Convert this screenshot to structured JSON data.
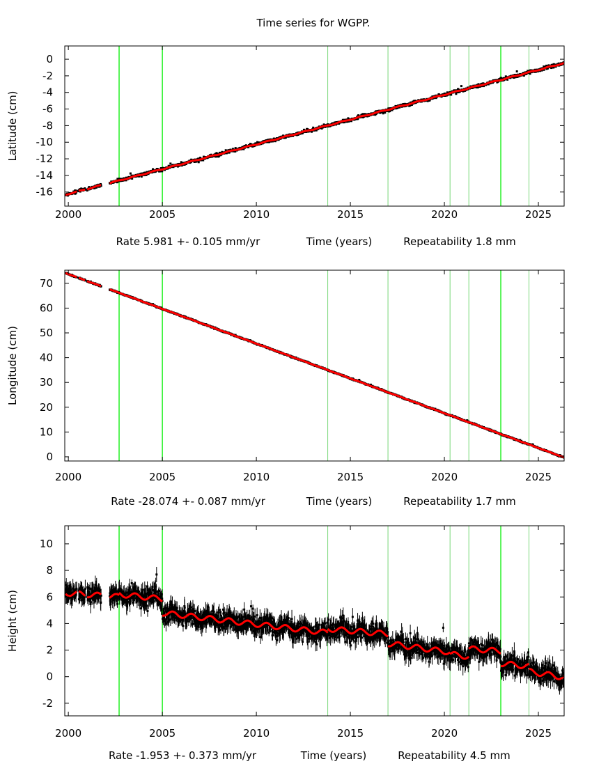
{
  "title": "Time series for WGPP.",
  "chart_data": [
    {
      "type": "scatter",
      "name": "latitude",
      "ylabel": "Latitude (cm)",
      "xlabel": "Time (years)",
      "rate_text": "Rate 5.981 +- 0.105 mm/yr",
      "repeatability_text": "Repeatability 1.8 mm",
      "xlim": [
        1999.81,
        2026.37
      ],
      "ylim": [
        -17.7,
        1.6
      ],
      "xticks": [
        2000,
        2005,
        2010,
        2015,
        2020,
        2025
      ],
      "yticks": [
        0,
        -2,
        -4,
        -6,
        -8,
        -10,
        -12,
        -14,
        -16
      ],
      "model_segments": [
        {
          "start": 1999.8,
          "end": 2026.4,
          "value_at_start": -16.35,
          "slope_per_year": 0.598
        }
      ],
      "seasonal_amplitude": 0.05,
      "noise_sigma": 0.15,
      "error_bar": 0.08
    },
    {
      "type": "scatter",
      "name": "longitude",
      "ylabel": "Longitude (cm)",
      "xlabel": "Time (years)",
      "rate_text": "Rate -28.074 +- 0.087 mm/yr",
      "repeatability_text": "Repeatability 1.7 mm",
      "xlim": [
        1999.81,
        2026.37
      ],
      "ylim": [
        -1.7,
        75.3
      ],
      "xticks": [
        2000,
        2005,
        2010,
        2015,
        2020,
        2025
      ],
      "yticks": [
        0,
        10,
        20,
        30,
        40,
        50,
        60,
        70
      ],
      "model_segments": [
        {
          "start": 1999.8,
          "end": 2026.4,
          "value_at_start": 74.3,
          "slope_per_year": -2.807
        }
      ],
      "seasonal_amplitude": 0.05,
      "noise_sigma": 0.2,
      "error_bar": 0.15
    },
    {
      "type": "scatter",
      "name": "height",
      "ylabel": "Height (cm)",
      "xlabel": "Time (years)",
      "rate_text": "Rate -1.953 +- 0.373 mm/yr",
      "repeatability_text": "Repeatability 4.5 mm",
      "xlim": [
        1999.81,
        2026.37
      ],
      "ylim": [
        -2.95,
        11.36
      ],
      "xticks": [
        2000,
        2005,
        2010,
        2015,
        2020,
        2025
      ],
      "yticks": [
        10,
        8,
        6,
        4,
        2,
        0,
        -2
      ],
      "model_segments": [
        {
          "start": 1999.8,
          "end": 2002.7,
          "value_at_start": 6.3,
          "slope_per_year": -0.1
        },
        {
          "start": 2002.7,
          "end": 2005.0,
          "value_at_start": 6.2,
          "slope_per_year": -0.15
        },
        {
          "start": 2005.0,
          "end": 2013.8,
          "value_at_start": 4.8,
          "slope_per_year": -0.17
        },
        {
          "start": 2013.8,
          "end": 2017.0,
          "value_at_start": 3.6,
          "slope_per_year": -0.12
        },
        {
          "start": 2017.0,
          "end": 2020.3,
          "value_at_start": 2.5,
          "slope_per_year": -0.2
        },
        {
          "start": 2020.3,
          "end": 2021.3,
          "value_at_start": 1.7,
          "slope_per_year": -0.2
        },
        {
          "start": 2021.3,
          "end": 2023.0,
          "value_at_start": 2.1,
          "slope_per_year": -0.1
        },
        {
          "start": 2023.0,
          "end": 2024.5,
          "value_at_start": 1.0,
          "slope_per_year": -0.15
        },
        {
          "start": 2024.5,
          "end": 2026.4,
          "value_at_start": 0.4,
          "slope_per_year": -0.25
        }
      ],
      "seasonal_amplitude": 0.2,
      "noise_sigma": 0.55,
      "error_bar": 0.45
    }
  ],
  "data_coverage": [
    [
      1999.85,
      2000.45
    ],
    [
      2000.55,
      2000.9
    ],
    [
      2001.0,
      2001.75
    ],
    [
      2002.2,
      2026.37
    ]
  ],
  "discontinuities": [
    {
      "epoch": 2002.7,
      "strong": true
    },
    {
      "epoch": 2005.0,
      "strong": true
    },
    {
      "epoch": 2013.8,
      "strong": false
    },
    {
      "epoch": 2017.0,
      "strong": false
    },
    {
      "epoch": 2020.3,
      "strong": false
    },
    {
      "epoch": 2021.3,
      "strong": false
    },
    {
      "epoch": 2023.0,
      "strong": true
    },
    {
      "epoch": 2024.5,
      "strong": false
    }
  ],
  "colors": {
    "data": "#000000",
    "model": "#ff0000",
    "discontinuity": "#00e000",
    "frame": "#000000"
  }
}
